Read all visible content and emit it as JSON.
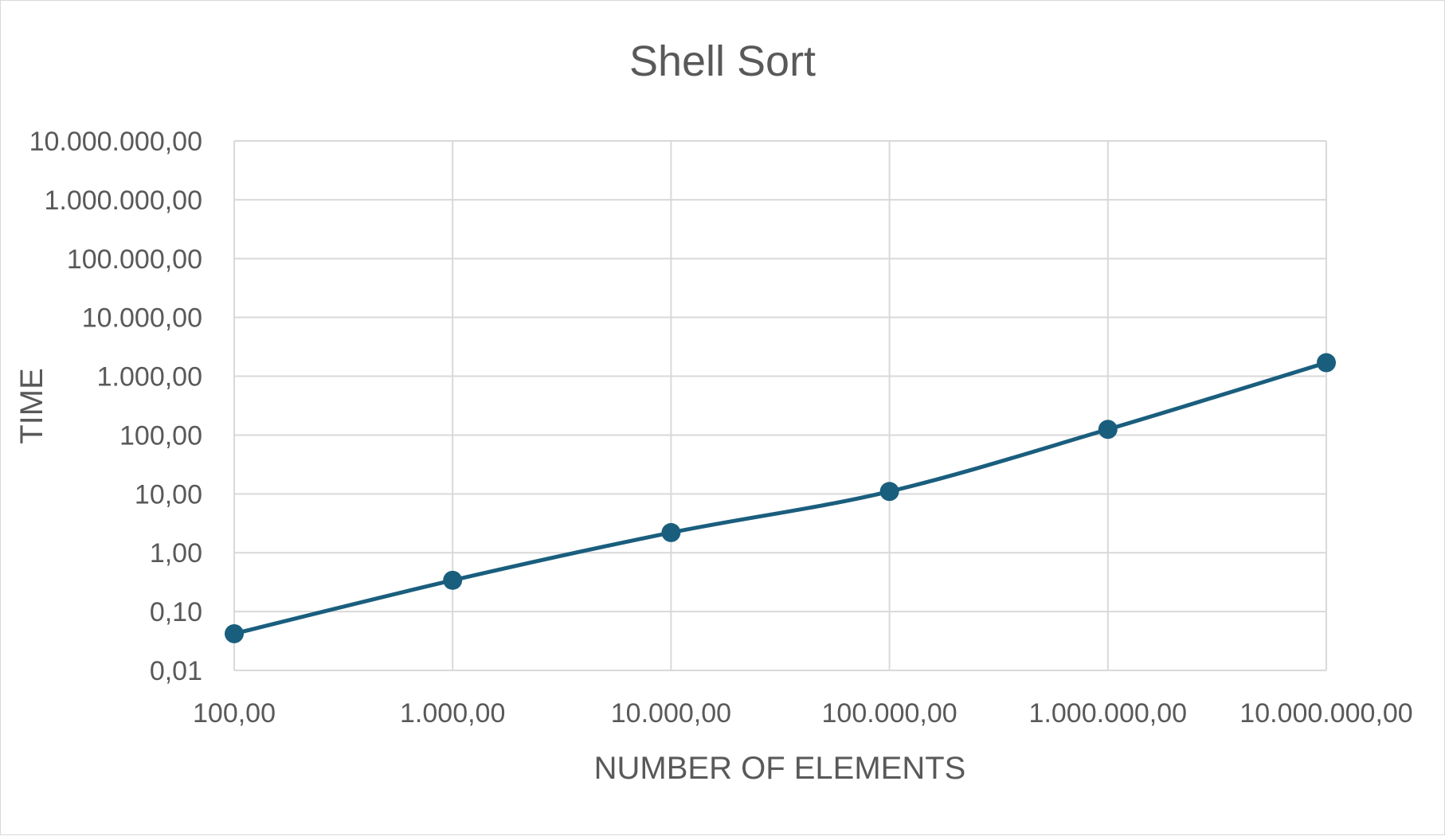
{
  "chart_data": {
    "type": "line",
    "title": "Shell Sort",
    "xlabel": "NUMBER OF ELEMENTS",
    "ylabel": "TIME",
    "x_scale": "log",
    "y_scale": "log",
    "xlim": [
      100,
      10000000
    ],
    "ylim": [
      0.01,
      10000000
    ],
    "x_ticks": [
      100,
      1000,
      10000,
      100000,
      1000000,
      10000000
    ],
    "x_tick_labels": [
      "100,00",
      "1.000,00",
      "10.000,00",
      "100.000,00",
      "1.000.000,00",
      "10.000.000,00"
    ],
    "y_ticks": [
      0.01,
      0.1,
      1,
      10,
      100,
      1000,
      10000,
      100000,
      1000000,
      10000000
    ],
    "y_tick_labels": [
      "0,01",
      "0,10",
      "1,00",
      "10,00",
      "100,00",
      "1.000,00",
      "10.000,00",
      "100.000,00",
      "1.000.000,00",
      "10.000.000,00"
    ],
    "grid": true,
    "legend": "none",
    "series": [
      {
        "color": "#1a5e7e",
        "marker": "circle",
        "x": [
          100,
          1000,
          10000,
          100000,
          1000000,
          10000000
        ],
        "y": [
          0.042,
          0.34,
          2.2,
          11,
          125,
          1700
        ]
      }
    ]
  }
}
